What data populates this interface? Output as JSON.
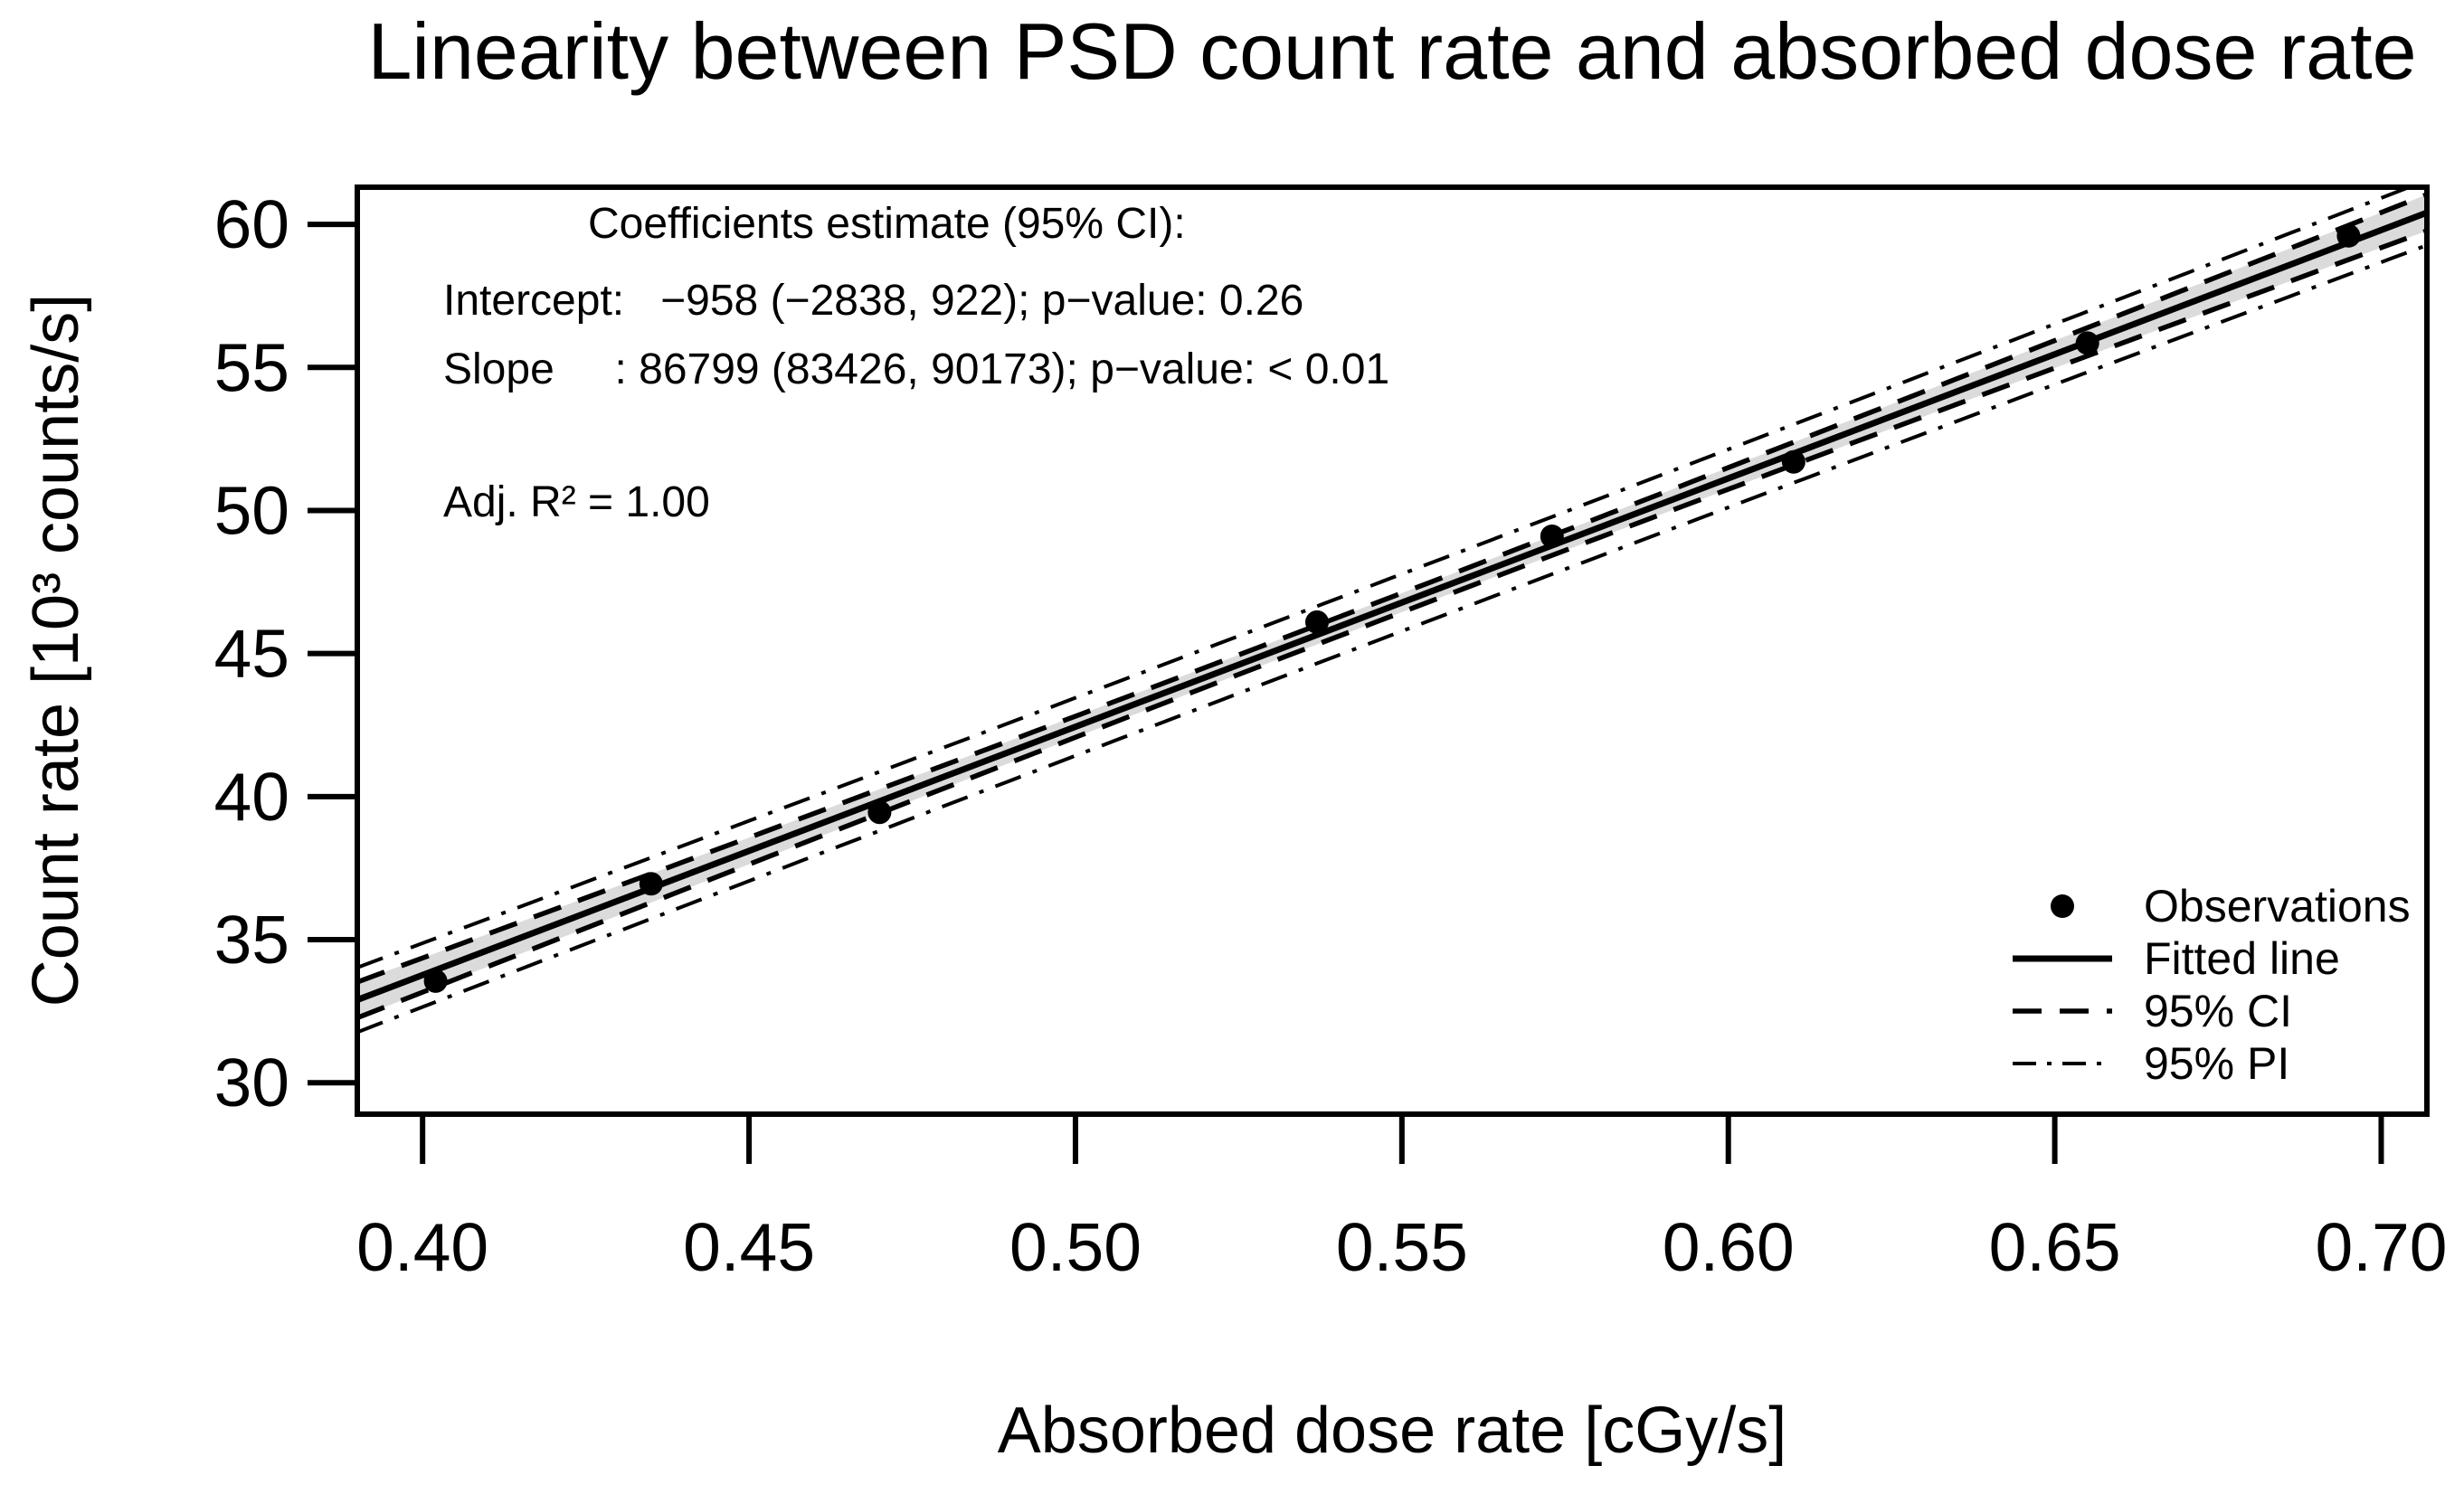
{
  "title": "Linearity between PSD count rate and absorbed dose rate",
  "axes": {
    "x_label": "Absorbed dose rate [cGy/s]",
    "y_label": "Count rate [10³ counts/s]",
    "x_tick_labels": [
      "0.40",
      "0.45",
      "0.50",
      "0.55",
      "0.60",
      "0.65",
      "0.70"
    ],
    "y_tick_labels": [
      "30",
      "35",
      "40",
      "45",
      "50",
      "55",
      "60"
    ]
  },
  "annotation": {
    "lines": [
      "Coefficients estimate (95% CI):",
      "Intercept:   −958 (−2838, 922); p−value: 0.26",
      "Slope     : 86799 (83426, 90173); p−value: < 0.01",
      "Adj. R² = 1.00"
    ]
  },
  "legend": {
    "items": [
      {
        "symbol": "point-icon",
        "label": "Observations"
      },
      {
        "symbol": "solid-line-icon",
        "label": "Fitted line"
      },
      {
        "symbol": "dashed-line-icon",
        "label": "95% CI"
      },
      {
        "symbol": "dashdot-line-icon",
        "label": "95% PI"
      }
    ]
  },
  "chart_data": {
    "type": "scatter",
    "title": "Linearity between PSD count rate and absorbed dose rate",
    "xlabel": "Absorbed dose rate [cGy/s]",
    "ylabel": "Count rate [10³ counts/s]",
    "xlim": [
      0.39,
      0.707
    ],
    "ylim": [
      28.9,
      61.3
    ],
    "x_tick_values": [
      0.4,
      0.45,
      0.5,
      0.55,
      0.6,
      0.65,
      0.7
    ],
    "y_tick_values": [
      30,
      35,
      40,
      45,
      50,
      55,
      60
    ],
    "grid": false,
    "legend_position": "bottom-right",
    "observations": {
      "x": [
        0.402,
        0.435,
        0.47,
        0.537,
        0.573,
        0.61,
        0.655,
        0.695
      ],
      "y": [
        33.55,
        36.95,
        39.45,
        46.1,
        49.1,
        51.7,
        55.85,
        59.6
      ]
    },
    "fit": {
      "model": "count_rate_counts_per_s = intercept + slope * dose_rate_cGy_per_s",
      "intercept": -958,
      "intercept_ci95": [
        -2838,
        922
      ],
      "intercept_p_value": "0.26",
      "slope": 86799,
      "slope_ci95": [
        83426,
        90173
      ],
      "slope_p_value": "< 0.01",
      "adj_r2": "1.00",
      "ci_level": "95%",
      "pi_level": "95%"
    },
    "colors": {
      "foreground": "#000000",
      "ci_band_fill": "#dbdbdb",
      "background": "#ffffff"
    }
  }
}
